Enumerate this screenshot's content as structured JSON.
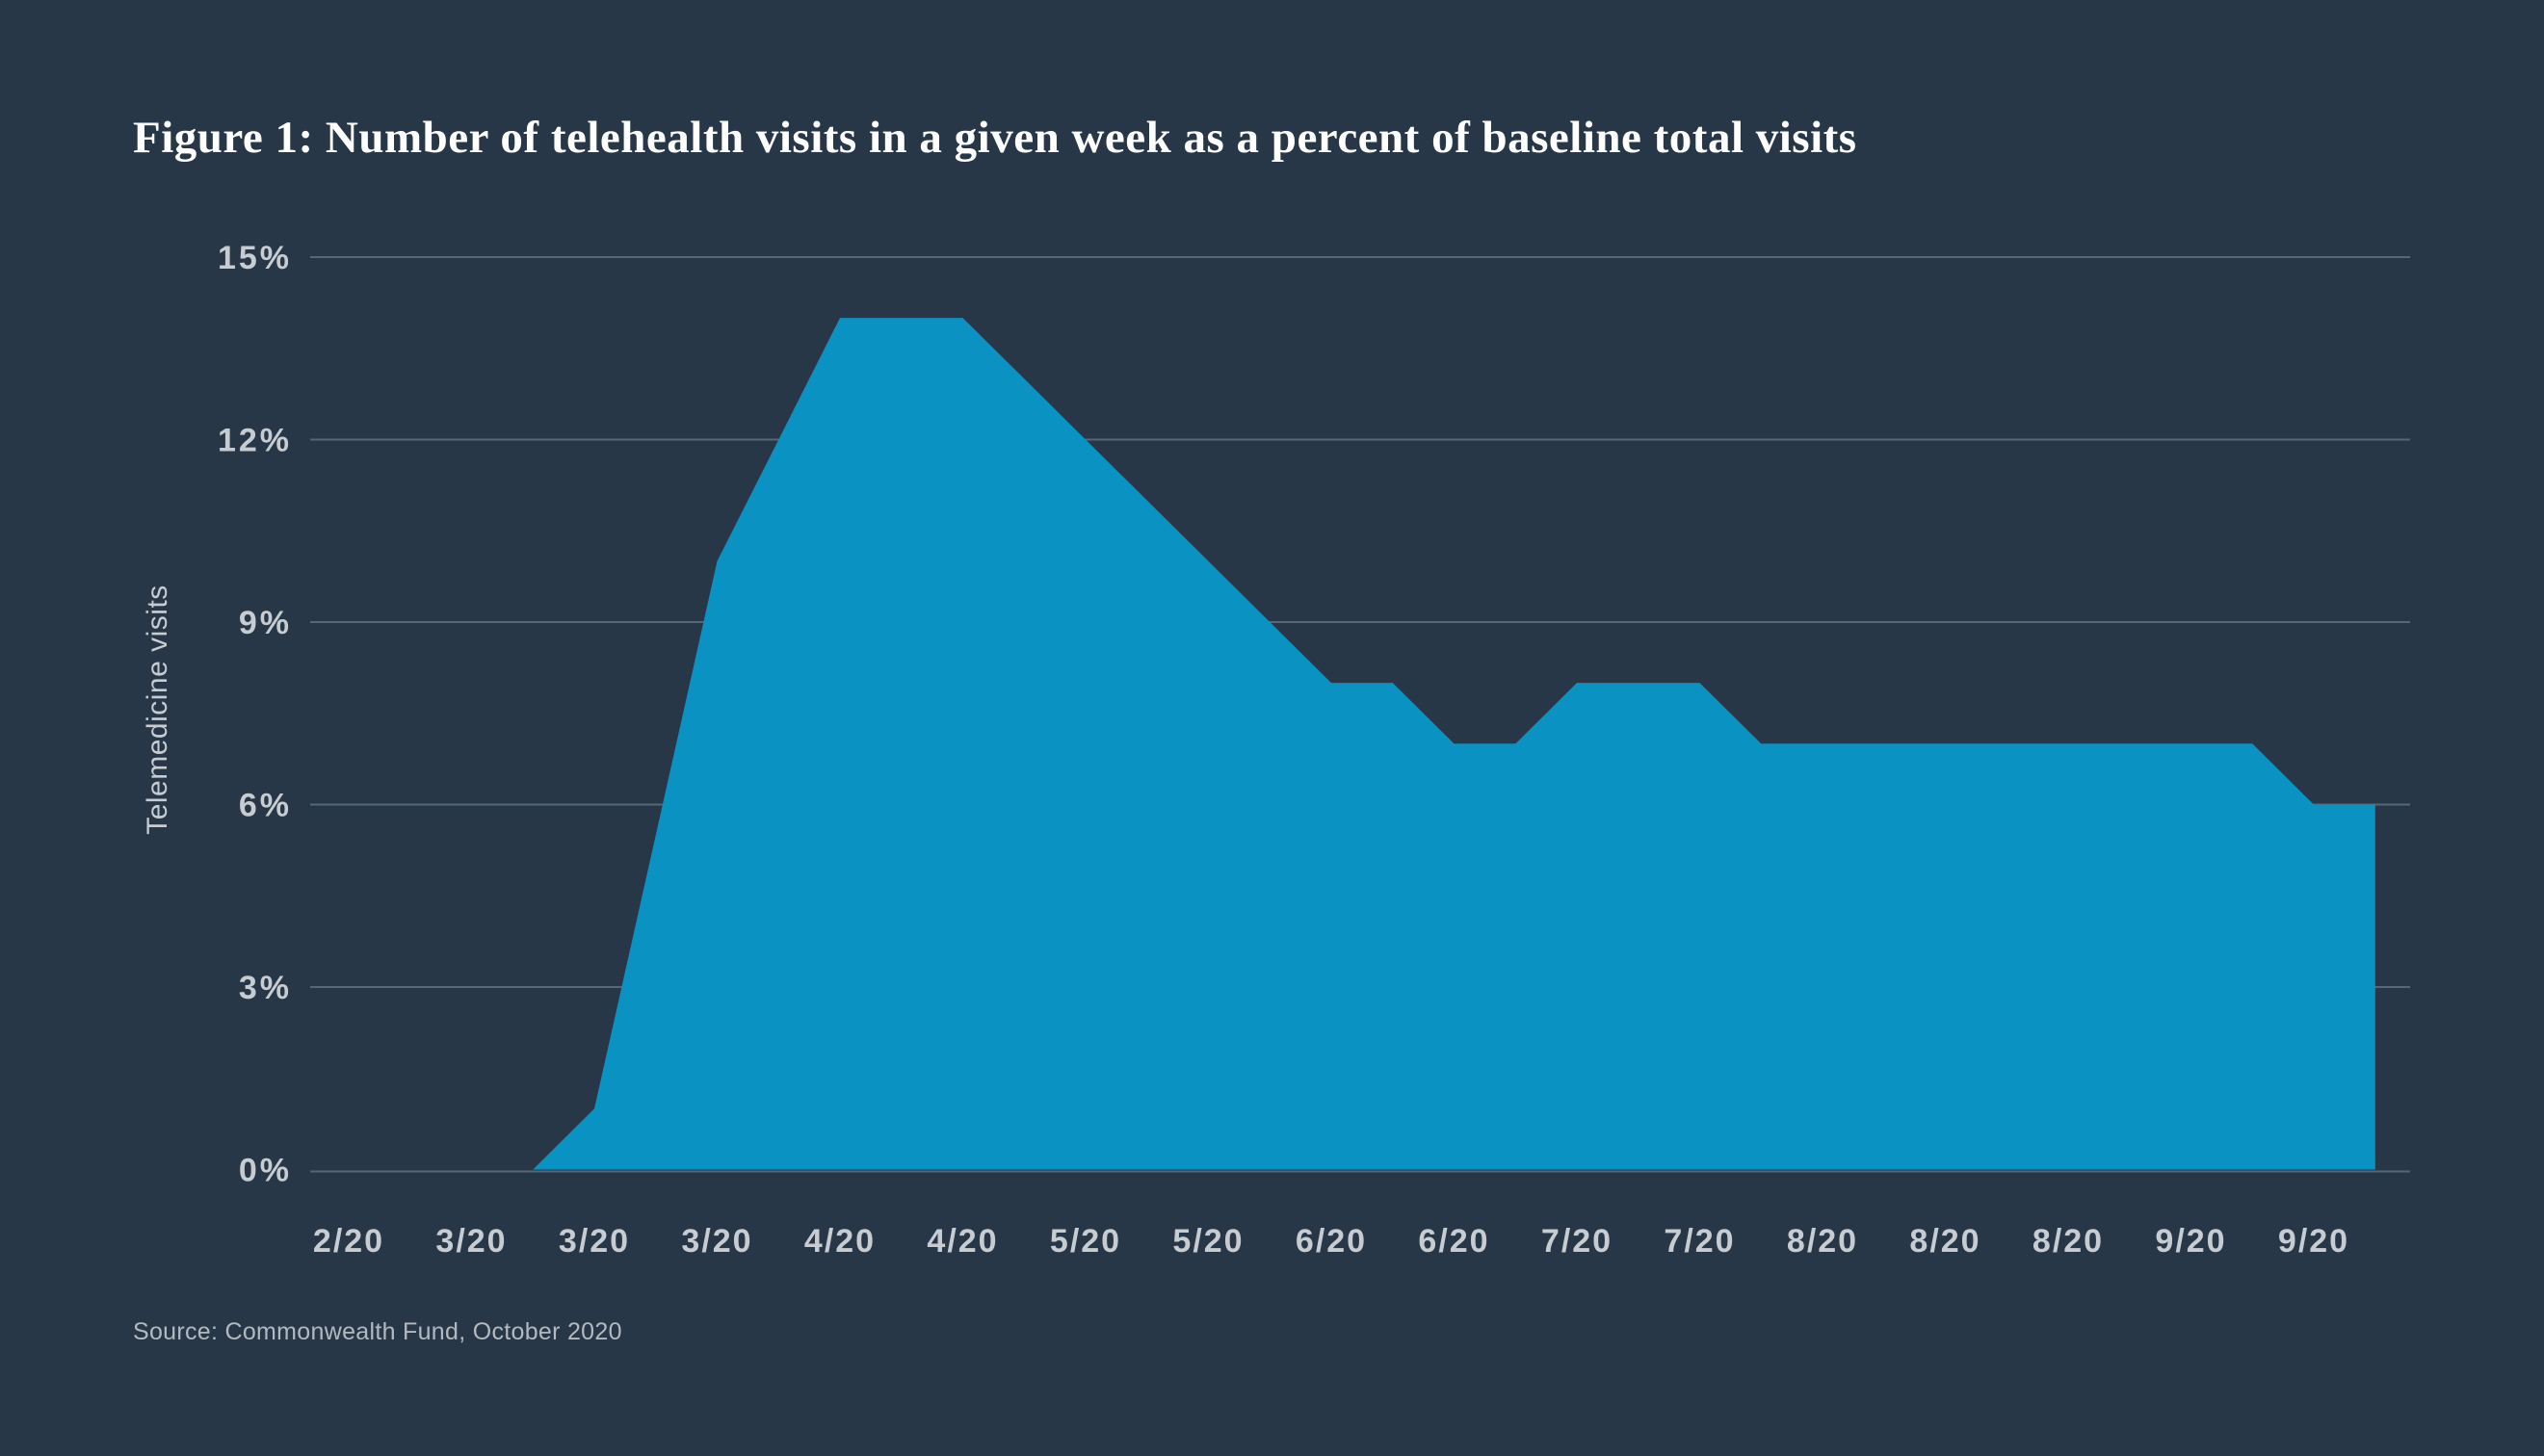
{
  "title": "Figure 1: Number of telehealth visits in a given week as a percent of baseline total visits",
  "source": "Source: Commonwealth Fund, October 2020",
  "chart_data": {
    "type": "area",
    "title": "Figure 1: Number of telehealth visits in a given week as a percent of baseline total visits",
    "xlabel": "",
    "ylabel": "Telemedicine visits",
    "ylim": [
      0,
      15
    ],
    "ytick_values": [
      0,
      3,
      6,
      9,
      12,
      15
    ],
    "ytick_labels": [
      "0%",
      "3%",
      "6%",
      "9%",
      "12%",
      "15%"
    ],
    "x_tick_labels": [
      "2/20",
      "3/20",
      "3/20",
      "3/20",
      "4/20",
      "4/20",
      "5/20",
      "5/20",
      "6/20",
      "6/20",
      "7/20",
      "7/20",
      "8/20",
      "8/20",
      "8/20",
      "9/20",
      "9/20"
    ],
    "points_per_label": 2,
    "series": [
      {
        "name": "Telehealth visits as percent of baseline total visits",
        "values_pct": [
          0,
          0,
          0,
          0,
          1,
          5.5,
          10,
          12,
          14,
          14,
          14,
          13,
          12,
          11,
          10,
          9,
          8,
          8,
          7,
          7,
          8,
          8,
          8,
          7,
          7,
          7,
          7,
          7,
          7,
          7,
          7,
          7,
          6,
          6
        ]
      }
    ],
    "values_at_labels_pct": [
      0,
      0,
      1,
      10,
      14,
      14,
      12,
      10,
      8,
      7,
      8,
      8,
      7,
      7,
      7,
      7,
      6
    ],
    "grid": "horizontal",
    "legend_position": "none",
    "colors": {
      "background": "#273747",
      "area": "#0992c2",
      "gridline": "#566778",
      "tick_text": "#c7ccd2",
      "title_text": "#ffffff",
      "source_text": "#b2b9c0"
    }
  }
}
